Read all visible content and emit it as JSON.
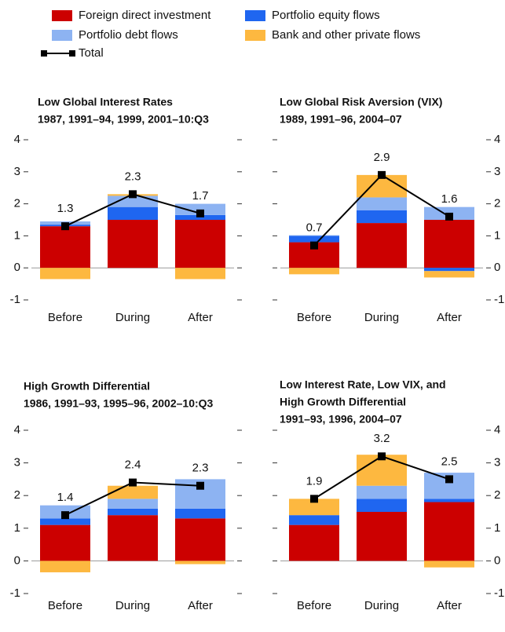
{
  "chart_data": [
    {
      "type": "bar",
      "stacked": true,
      "title": [
        "Low Global Interest Rates",
        "1987, 1991–94, 1999, 2001–10:Q3"
      ],
      "categories": [
        "Before",
        "During",
        "After"
      ],
      "series": [
        {
          "name": "Foreign direct investment",
          "color": "#cc0000",
          "values": [
            1.3,
            1.5,
            1.5
          ]
        },
        {
          "name": "Portfolio equity flows",
          "color": "#1f66f0",
          "values": [
            0.05,
            0.4,
            0.15
          ]
        },
        {
          "name": "Portfolio debt flows",
          "color": "#8db3f2",
          "values": [
            0.1,
            0.35,
            0.35
          ]
        },
        {
          "name": "Bank and other private flows",
          "color": "#fdb840",
          "values": [
            -0.35,
            0.05,
            -0.35
          ]
        },
        {
          "name": "Total",
          "type": "line",
          "color": "#000000",
          "values": [
            1.3,
            2.3,
            1.7
          ]
        }
      ],
      "ylim": [
        -1,
        4
      ],
      "yticks": [
        -1,
        0,
        1,
        2,
        3,
        4
      ],
      "axis_side": "left"
    },
    {
      "type": "bar",
      "stacked": true,
      "title": [
        "Low Global Risk Aversion (VIX)",
        "1989, 1991–96, 2004–07"
      ],
      "categories": [
        "Before",
        "During",
        "After"
      ],
      "series": [
        {
          "name": "Foreign direct investment",
          "color": "#cc0000",
          "values": [
            0.8,
            1.4,
            1.5
          ]
        },
        {
          "name": "Portfolio equity flows",
          "color": "#1f66f0",
          "values": [
            0.2,
            0.4,
            -0.1
          ]
        },
        {
          "name": "Portfolio debt flows",
          "color": "#8db3f2",
          "values": [
            0.02,
            0.4,
            0.4
          ]
        },
        {
          "name": "Bank and other private flows",
          "color": "#fdb840",
          "values": [
            -0.2,
            0.7,
            -0.2
          ]
        },
        {
          "name": "Total",
          "type": "line",
          "color": "#000000",
          "values": [
            0.7,
            2.9,
            1.6
          ]
        }
      ],
      "ylim": [
        -1,
        4
      ],
      "yticks": [
        -1,
        0,
        1,
        2,
        3,
        4
      ],
      "axis_side": "right"
    },
    {
      "type": "bar",
      "stacked": true,
      "title": [
        "High Growth Differential",
        "1986, 1991–93, 1995–96, 2002–10:Q3"
      ],
      "categories": [
        "Before",
        "During",
        "After"
      ],
      "series": [
        {
          "name": "Foreign direct investment",
          "color": "#cc0000",
          "values": [
            1.1,
            1.4,
            1.3
          ]
        },
        {
          "name": "Portfolio equity flows",
          "color": "#1f66f0",
          "values": [
            0.2,
            0.2,
            0.3
          ]
        },
        {
          "name": "Portfolio debt flows",
          "color": "#8db3f2",
          "values": [
            0.4,
            0.3,
            0.9
          ]
        },
        {
          "name": "Bank and other private flows",
          "color": "#fdb840",
          "values": [
            -0.35,
            0.4,
            -0.1
          ]
        },
        {
          "name": "Total",
          "type": "line",
          "color": "#000000",
          "values": [
            1.4,
            2.4,
            2.3
          ]
        }
      ],
      "ylim": [
        -1,
        4
      ],
      "yticks": [
        -1,
        0,
        1,
        2,
        3,
        4
      ],
      "axis_side": "left"
    },
    {
      "type": "bar",
      "stacked": true,
      "title": [
        "Low Interest Rate, Low VIX, and",
        "High Growth Differential",
        "1991–93, 1996, 2004–07"
      ],
      "categories": [
        "Before",
        "During",
        "After"
      ],
      "series": [
        {
          "name": "Foreign direct investment",
          "color": "#cc0000",
          "values": [
            1.1,
            1.5,
            1.8
          ]
        },
        {
          "name": "Portfolio equity flows",
          "color": "#1f66f0",
          "values": [
            0.3,
            0.4,
            0.1
          ]
        },
        {
          "name": "Portfolio debt flows",
          "color": "#8db3f2",
          "values": [
            0.0,
            0.4,
            0.8
          ]
        },
        {
          "name": "Bank and other private flows",
          "color": "#fdb840",
          "values": [
            0.5,
            0.95,
            -0.2
          ]
        },
        {
          "name": "Total",
          "type": "line",
          "color": "#000000",
          "values": [
            1.9,
            3.2,
            2.5
          ]
        }
      ],
      "ylim": [
        -1,
        4
      ],
      "yticks": [
        -1,
        0,
        1,
        2,
        3,
        4
      ],
      "axis_side": "right"
    }
  ]
}
